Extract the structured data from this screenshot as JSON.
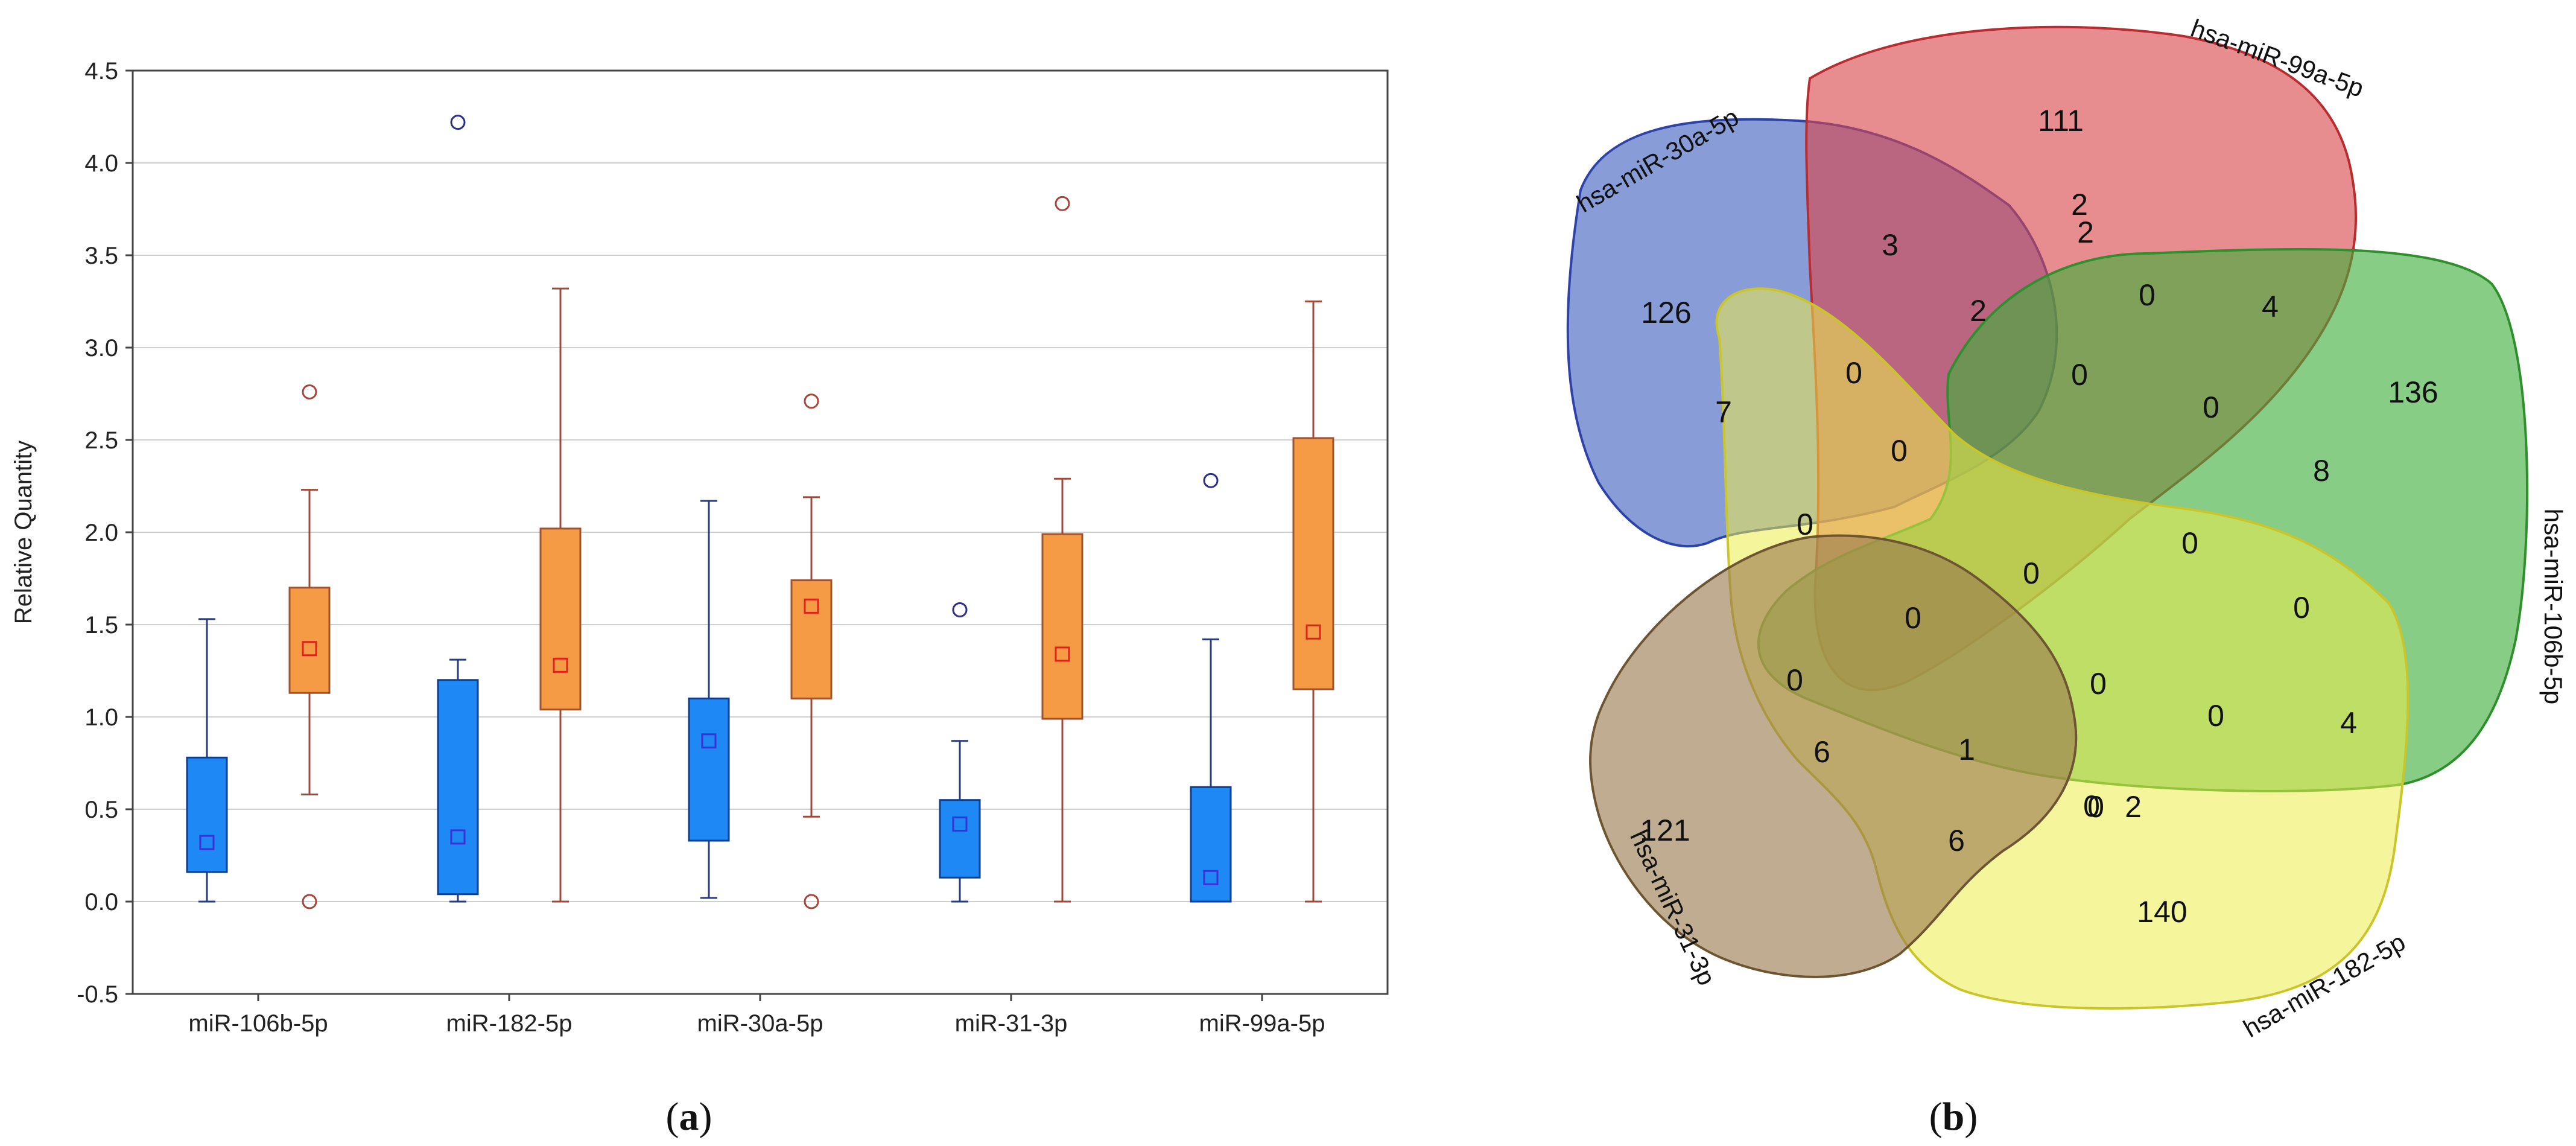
{
  "panel_a": {
    "caption_open": "(",
    "caption_letter": "a",
    "caption_close": ")"
  },
  "panel_b": {
    "caption_open": "(",
    "caption_letter": "b",
    "caption_close": ")"
  },
  "chart_data": [
    {
      "type": "box",
      "title": "",
      "xlabel": "",
      "ylabel": "Relative Quantity",
      "ylim": [
        -0.5,
        4.5
      ],
      "yticks": [
        "-0.5",
        "0.0",
        "0.5",
        "1.0",
        "1.5",
        "2.0",
        "2.5",
        "3.0",
        "3.5",
        "4.0",
        "4.5"
      ],
      "grid": true,
      "categories": [
        "miR-106b-5p",
        "miR-182-5p",
        "miR-30a-5p",
        "miR-31-3p",
        "miR-99a-5p"
      ],
      "colors": {
        "blue_box": "#1e88f5",
        "blue_edge": "#0c3f8f",
        "orange_box": "#f59b45",
        "orange_edge": "#a0522d",
        "whisker_blue": "#2a3b7a",
        "whisker_orange": "#9c4a3a"
      },
      "series": [
        {
          "color": "#1e88f5",
          "boxes": [
            {
              "whisker_low": 0.0,
              "q1": 0.16,
              "q3": 0.78,
              "whisker_high": 1.53,
              "center": 0.32,
              "outliers": []
            },
            {
              "whisker_low": 0.0,
              "q1": 0.04,
              "q3": 1.2,
              "whisker_high": 1.31,
              "center": 0.35,
              "outliers": [
                4.22
              ]
            },
            {
              "whisker_low": 0.02,
              "q1": 0.33,
              "q3": 1.1,
              "whisker_high": 2.17,
              "center": 0.87,
              "outliers": []
            },
            {
              "whisker_low": 0.0,
              "q1": 0.13,
              "q3": 0.55,
              "whisker_high": 0.87,
              "center": 0.42,
              "outliers": [
                1.58
              ]
            },
            {
              "whisker_low": 0.0,
              "q1": 0.0,
              "q3": 0.62,
              "whisker_high": 1.42,
              "center": 0.13,
              "outliers": [
                2.28
              ]
            }
          ]
        },
        {
          "color": "#f59b45",
          "boxes": [
            {
              "whisker_low": 0.58,
              "q1": 1.13,
              "q3": 1.7,
              "whisker_high": 2.23,
              "center": 1.37,
              "outliers": [
                2.76,
                0.0
              ]
            },
            {
              "whisker_low": 0.0,
              "q1": 1.04,
              "q3": 2.02,
              "whisker_high": 3.32,
              "center": 1.28,
              "outliers": []
            },
            {
              "whisker_low": 0.46,
              "q1": 1.1,
              "q3": 1.74,
              "whisker_high": 2.19,
              "center": 1.6,
              "outliers": [
                2.71,
                0.0
              ]
            },
            {
              "whisker_low": 0.0,
              "q1": 0.99,
              "q3": 1.99,
              "whisker_high": 2.29,
              "center": 1.34,
              "outliers": [
                3.78
              ]
            },
            {
              "whisker_low": 0.0,
              "q1": 1.15,
              "q3": 2.51,
              "whisker_high": 3.25,
              "center": 1.46,
              "outliers": []
            }
          ]
        }
      ]
    },
    {
      "type": "venn",
      "sets": [
        {
          "name": "hsa-miR-30a-5p",
          "color": "#3f5fbf"
        },
        {
          "name": "hsa-miR-99a-5p",
          "color": "#d9464a"
        },
        {
          "name": "hsa-miR-106b-5p",
          "color": "#3fae3a"
        },
        {
          "name": "hsa-miR-182-5p",
          "color": "#ecec4a"
        },
        {
          "name": "hsa-miR-31-3p",
          "color": "#9a7a4e"
        }
      ],
      "region_labels": [
        "126",
        "111",
        "136",
        "140",
        "121",
        "3",
        "2",
        "2",
        "0",
        "4",
        "7",
        "0",
        "2",
        "0",
        "0",
        "0",
        "8",
        "0",
        "0",
        "0",
        "0",
        "0",
        "0",
        "0",
        "0",
        "6",
        "1",
        "0",
        "4",
        "0",
        "2",
        "6"
      ]
    }
  ]
}
